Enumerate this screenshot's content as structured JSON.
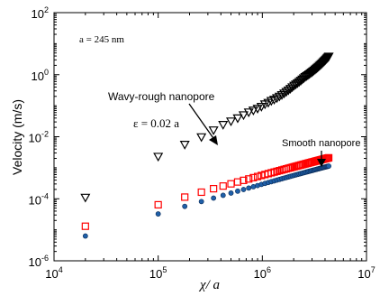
{
  "chart_data": {
    "type": "scatter",
    "x_scale": "log",
    "y_scale": "log",
    "xlim": [
      10000,
      10000000
    ],
    "ylim": [
      1e-06,
      100
    ],
    "xlabel": "χ/ a",
    "ylabel": "Velocity (m/s)",
    "grid": false,
    "x_ticks": [
      {
        "value": 10000,
        "base": "10",
        "exp": "4"
      },
      {
        "value": 100000,
        "base": "10",
        "exp": "5"
      },
      {
        "value": 1000000,
        "base": "10",
        "exp": "6"
      },
      {
        "value": 10000000,
        "base": "10",
        "exp": "7"
      }
    ],
    "y_ticks": [
      {
        "value": 1e-06,
        "base": "10",
        "exp": "-6"
      },
      {
        "value": 0.0001,
        "base": "10",
        "exp": "-4"
      },
      {
        "value": 0.01,
        "base": "10",
        "exp": "-2"
      },
      {
        "value": 1,
        "base": "10",
        "exp": "0"
      },
      {
        "value": 100,
        "base": "10",
        "exp": "2"
      }
    ],
    "annotations": {
      "param": "a = 245 nm",
      "wavy_label": "Wavy-rough nanopore",
      "eps_label": "ε = 0.02   a",
      "smooth_label": "Smooth nanopore"
    },
    "series": [
      {
        "marker": "triangle-down",
        "color": "#000000",
        "fill": "none",
        "x": [
          20000,
          100000,
          180000,
          260000,
          340000,
          420000,
          500000,
          580000,
          660000,
          740000,
          820000,
          900000,
          980000,
          1060000,
          1140000,
          1220000,
          1300000,
          1380000,
          1460000,
          1540000,
          1620000,
          1700000,
          1780000,
          1860000,
          1940000,
          2020000,
          2100000,
          2180000,
          2260000,
          2340000,
          2420000,
          2500000,
          2580000,
          2660000,
          2740000,
          2820000,
          2900000,
          2980000,
          3060000,
          3140000,
          3220000,
          3300000,
          3380000,
          3460000,
          3540000,
          3620000,
          3700000,
          3780000,
          3860000,
          3940000,
          4020000,
          4100000,
          4180000,
          4260000,
          4340000
        ],
        "y": [
          0.00011,
          0.0023,
          0.0056,
          0.0098,
          0.0163,
          0.0245,
          0.0316,
          0.0398,
          0.0501,
          0.0617,
          0.0708,
          0.0813,
          0.0933,
          0.1122,
          0.1259,
          0.1445,
          0.1585,
          0.1778,
          0.1995,
          0.2239,
          0.2512,
          0.2818,
          0.3162,
          0.3548,
          0.3981,
          0.4467,
          0.4898,
          0.537,
          0.5888,
          0.6457,
          0.7079,
          0.7762,
          0.8511,
          0.912,
          0.9772,
          1.0471,
          1.122,
          1.2023,
          1.2882,
          1.3804,
          1.4791,
          1.5849,
          1.6982,
          1.8197,
          1.9498,
          2.0893,
          2.2387,
          2.3988,
          2.5704,
          2.7542,
          2.9512,
          3.1623,
          3.3884,
          3.6308,
          3.8905
        ]
      },
      {
        "marker": "square",
        "color": "#ff0000",
        "fill": "none",
        "x": [
          20000,
          100000,
          180000,
          260000,
          340000,
          420000,
          500000,
          580000,
          660000,
          740000,
          820000,
          900000,
          980000,
          1060000,
          1140000,
          1220000,
          1300000,
          1380000,
          1460000,
          1540000,
          1620000,
          1700000,
          1780000,
          1860000,
          1940000,
          2020000,
          2100000,
          2180000,
          2260000,
          2340000,
          2420000,
          2500000,
          2580000,
          2660000,
          2740000,
          2820000,
          2900000,
          2980000,
          3060000,
          3140000,
          3220000,
          3300000,
          3380000,
          3460000,
          3540000,
          3620000,
          3700000,
          3780000,
          3860000,
          3940000,
          4020000,
          4100000,
          4180000,
          4260000,
          4340000
        ],
        "y": [
          1.3e-05,
          6.4e-05,
          0.000113,
          0.000163,
          0.000211,
          0.000257,
          0.000303,
          0.000348,
          0.000392,
          0.000435,
          0.000479,
          0.000521,
          0.000563,
          0.000604,
          0.000645,
          0.000686,
          0.000726,
          0.000766,
          0.000806,
          0.000845,
          0.000884,
          0.000923,
          0.000961,
          0.000999,
          0.001037,
          0.001075,
          0.001113,
          0.00115,
          0.001187,
          0.001224,
          0.001261,
          0.001297,
          0.001334,
          0.00137,
          0.001406,
          0.001442,
          0.001477,
          0.001513,
          0.001548,
          0.001583,
          0.001618,
          0.001653,
          0.001688,
          0.001722,
          0.001757,
          0.001791,
          0.001825,
          0.001859,
          0.001893,
          0.001927,
          0.00196,
          0.001994,
          0.002027,
          0.00206,
          0.002093
        ]
      },
      {
        "marker": "circle",
        "color": "#1f5fa8",
        "fill": "#1f5fa8",
        "x": [
          20000,
          100000,
          180000,
          260000,
          340000,
          420000,
          500000,
          580000,
          660000,
          740000,
          820000,
          900000,
          980000,
          1060000,
          1140000,
          1220000,
          1300000,
          1380000,
          1460000,
          1540000,
          1620000,
          1700000,
          1780000,
          1860000,
          1940000,
          2020000,
          2100000,
          2180000,
          2260000,
          2340000,
          2420000,
          2500000,
          2580000,
          2660000,
          2740000,
          2820000,
          2900000,
          2980000,
          3060000,
          3140000,
          3220000,
          3300000,
          3380000,
          3460000,
          3540000,
          3620000,
          3700000,
          3780000,
          3860000,
          3940000,
          4020000,
          4100000,
          4180000,
          4260000,
          4340000
        ],
        "y": [
          6.3e-06,
          3.24e-05,
          5.69e-05,
          8.12e-05,
          0.0001052,
          0.0001289,
          0.0001524,
          0.0001757,
          0.0001988,
          0.0002217,
          0.0002444,
          0.000267,
          0.0002894,
          0.0003116,
          0.0003337,
          0.0003557,
          0.0003775,
          0.0003992,
          0.0004207,
          0.0004421,
          0.0004634,
          0.0004846,
          0.0005057,
          0.0005266,
          0.0005474,
          0.0005682,
          0.0005888,
          0.0006093,
          0.0006297,
          0.00065,
          0.0006702,
          0.0006903,
          0.0007103,
          0.0007302,
          0.00075,
          0.0007698,
          0.0007894,
          0.000809,
          0.0008285,
          0.0008479,
          0.0008672,
          0.0008864,
          0.0009055,
          0.0009246,
          0.0009436,
          0.0009625,
          0.0009813,
          0.001,
          0.0010187,
          0.0010373,
          0.0010558,
          0.0010743,
          0.0010927,
          0.001111,
          0.0011292
        ]
      }
    ]
  }
}
